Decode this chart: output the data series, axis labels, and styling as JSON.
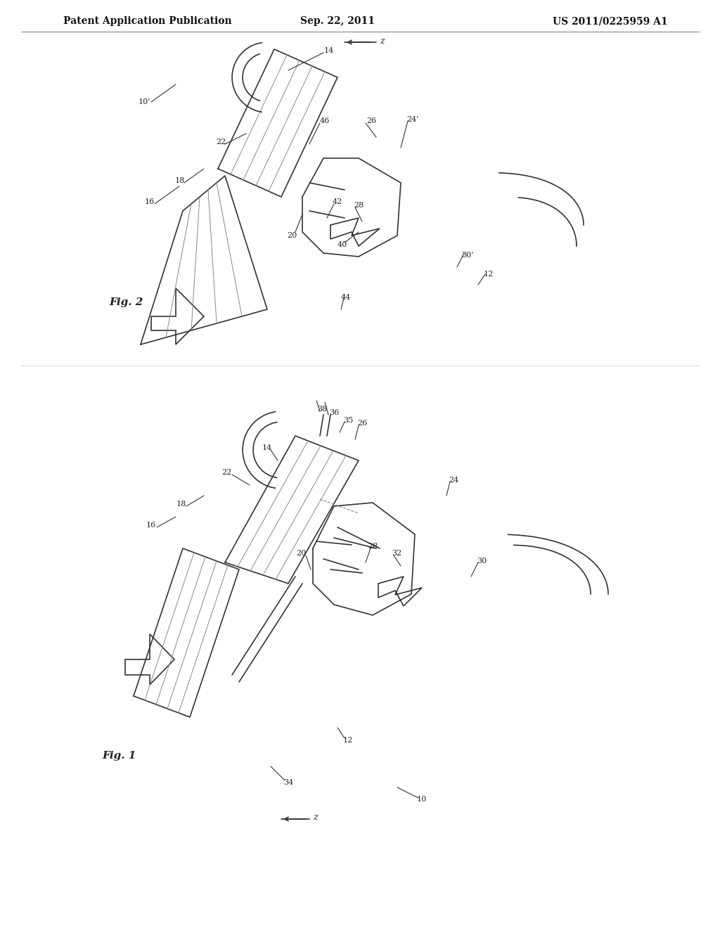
{
  "bg_color": "#ffffff",
  "line_color": "#555555",
  "dark_line": "#333333",
  "header_left": "Patent Application Publication",
  "header_center": "Sep. 22, 2011",
  "header_right": "US 2011/0225959 A1",
  "header_fontsize": 10,
  "fig1_label": "Fig. 1",
  "fig2_label": "Fig. 2",
  "title_color": "#222222"
}
